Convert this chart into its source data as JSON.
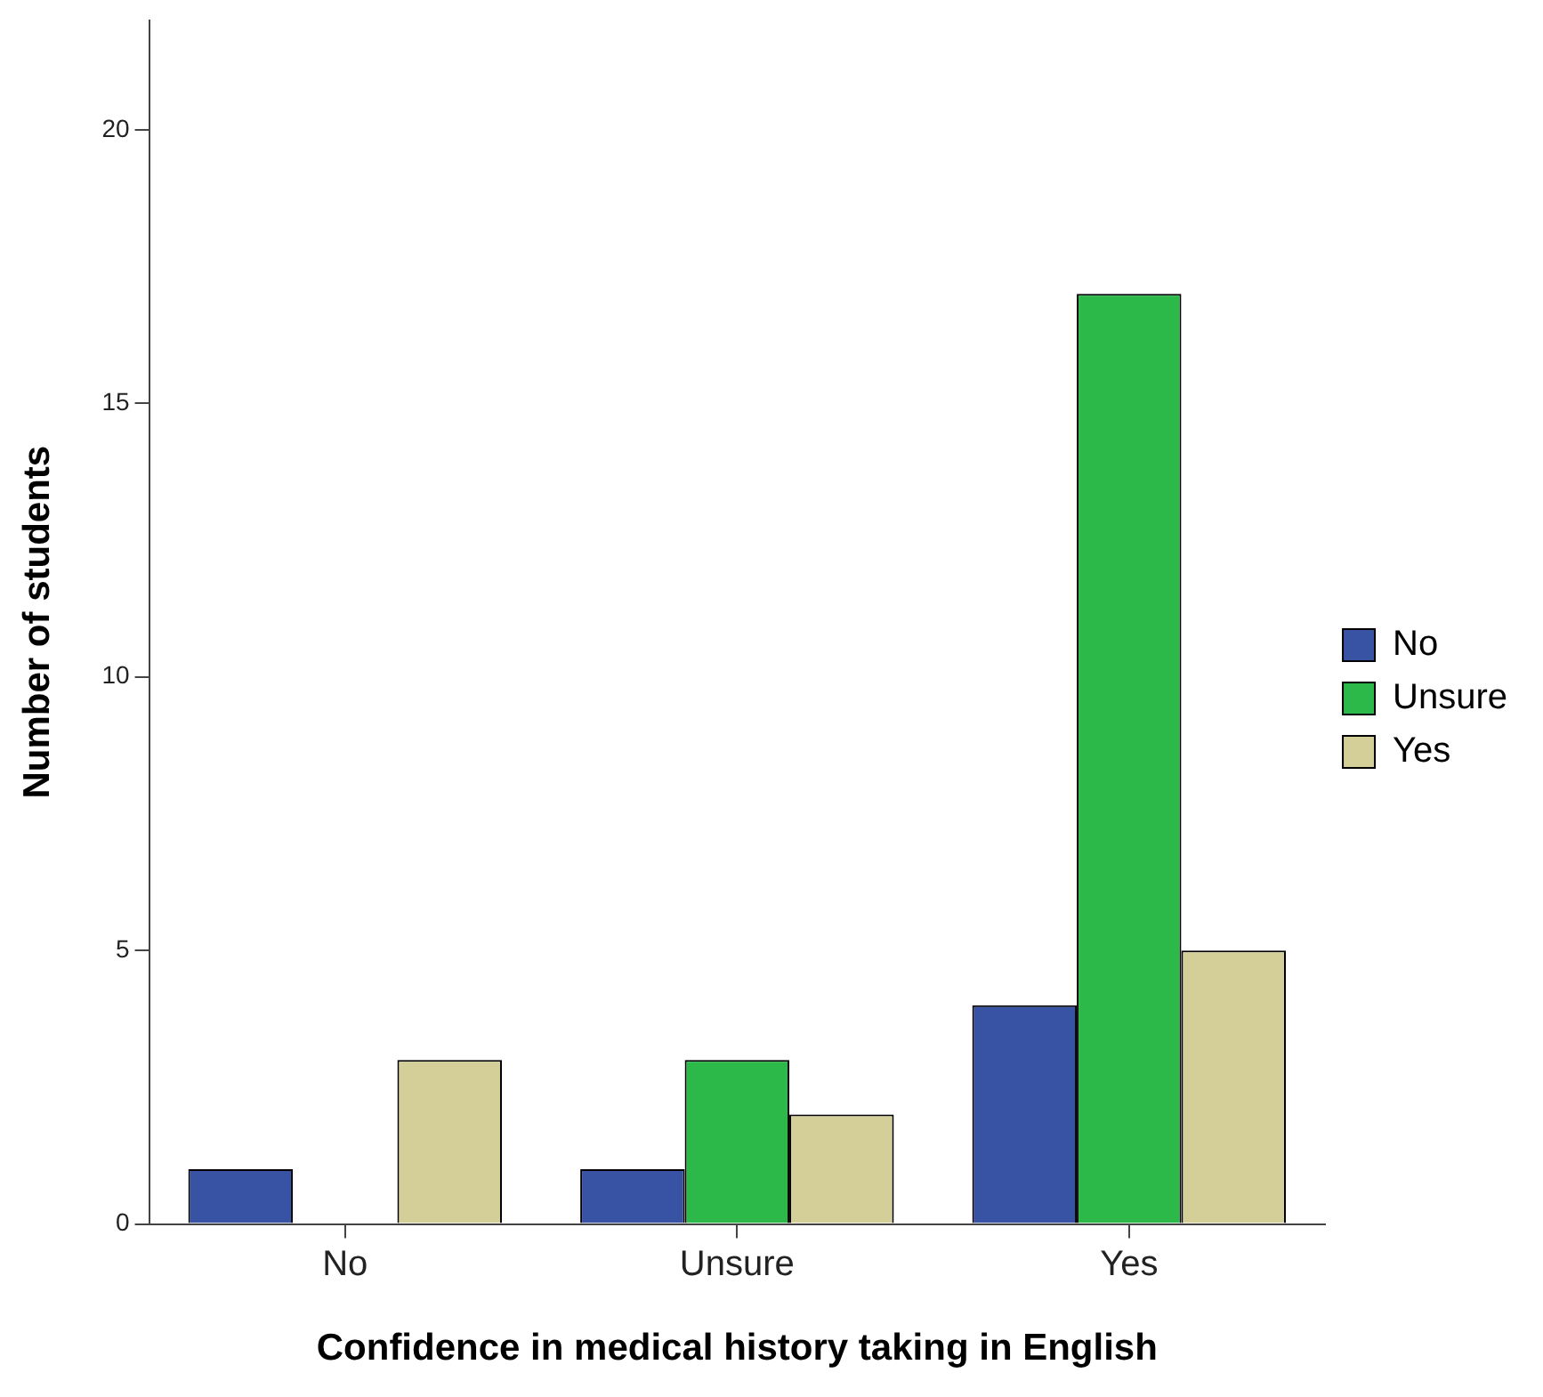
{
  "chart_data": {
    "type": "bar",
    "xlabel": "Confidence in medical history taking in English",
    "ylabel": "Number of students",
    "categories": [
      "No",
      "Unsure",
      "Yes"
    ],
    "series": [
      {
        "name": "No",
        "color": "#3953a4",
        "values": [
          1,
          1,
          4
        ]
      },
      {
        "name": "Unsure",
        "color": "#2db84a",
        "values": [
          0,
          3,
          17
        ]
      },
      {
        "name": "Yes",
        "color": "#d4cf98",
        "values": [
          3,
          2,
          5
        ]
      }
    ],
    "ylim": [
      0,
      22
    ],
    "yticks": [
      0,
      5,
      10,
      15,
      20
    ],
    "grid": false,
    "legend": "right"
  }
}
